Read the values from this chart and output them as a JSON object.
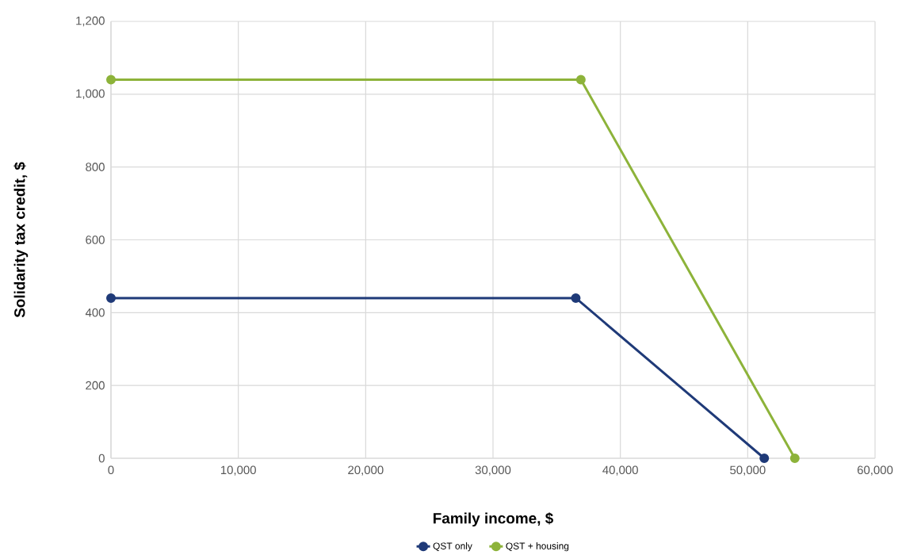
{
  "chart_data": {
    "type": "line",
    "xlabel": "Family income, $",
    "ylabel": "Solidarity tax credit, $",
    "series": [
      {
        "name": "QST only",
        "color": "#1f3a78",
        "x": [
          0,
          36500,
          51300
        ],
        "values": [
          440,
          440,
          0
        ]
      },
      {
        "name": "QST + housing",
        "color": "#8db33a",
        "x": [
          0,
          36900,
          53700
        ],
        "values": [
          1040,
          1040,
          0
        ]
      }
    ],
    "xlim": [
      0,
      60000
    ],
    "ylim": [
      0,
      1200
    ],
    "xticks": [
      0,
      {
        "value": 10000,
        "label": "10,000"
      },
      {
        "value": 20000,
        "label": "20,000"
      },
      {
        "value": 30000,
        "label": "30,000"
      },
      {
        "value": 40000,
        "label": "40,000"
      },
      {
        "value": 50000,
        "label": "50,000"
      },
      {
        "value": 60000,
        "label": "60,000"
      }
    ],
    "yticks": [
      0,
      200,
      400,
      600,
      800,
      {
        "value": 1000,
        "label": "1,000"
      },
      {
        "value": 1200,
        "label": "1,200"
      }
    ],
    "grid": true,
    "legend": "bottom",
    "marker": "circle",
    "line_style": "solid"
  }
}
